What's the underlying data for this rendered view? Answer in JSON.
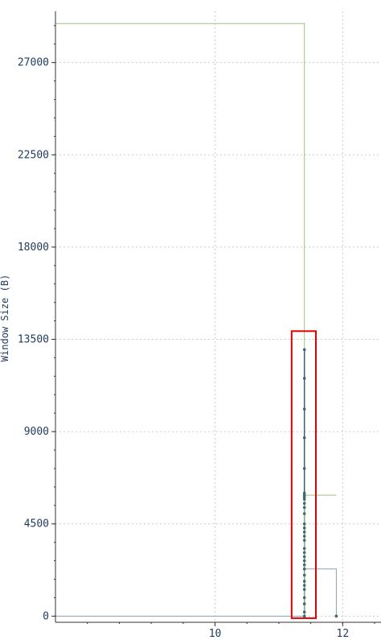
{
  "chart_data": {
    "type": "line",
    "title": "",
    "xlabel": "",
    "ylabel": "Window Size (B)",
    "xlim": [
      7.5,
      12.6
    ],
    "ylim": [
      -300,
      29500
    ],
    "x_ticks": [
      10,
      12
    ],
    "y_ticks": [
      0,
      4500,
      9000,
      13500,
      18000,
      22500,
      27000
    ],
    "grid": true,
    "colors": {
      "receive_window": "#9bc47a",
      "bytes_in_flight": "#3d5d78",
      "bytes_in_flight_points": "#3d6b6b",
      "secondary_step": "#8aa0be",
      "axis": "#333333",
      "grid": "#cccccc",
      "highlight": "#e00000"
    },
    "series": [
      {
        "type": "step",
        "color_key": "receive_window",
        "x": [
          7.5,
          11.4,
          11.4,
          11.9
        ],
        "y": [
          28900,
          28900,
          5900,
          5900
        ]
      },
      {
        "type": "step",
        "color_key": "secondary_step",
        "x": [
          7.5,
          11.4,
          11.4,
          11.9,
          11.9
        ],
        "y": [
          0,
          0,
          2300,
          2300,
          0
        ]
      },
      {
        "type": "line+points",
        "color_key": "bytes_in_flight_points",
        "x": [
          11.4,
          11.4,
          11.4,
          11.4,
          11.4,
          11.4,
          11.4,
          11.4,
          11.4,
          11.4,
          11.4,
          11.4,
          11.4,
          11.4,
          11.4,
          11.4,
          11.4,
          11.4,
          11.4,
          11.4,
          11.4,
          11.4,
          11.4,
          11.4,
          11.4,
          11.4,
          11.4,
          11.4,
          11.4,
          11.4,
          11.4,
          11.9
        ],
        "y": [
          0,
          200,
          600,
          900,
          1300,
          1500,
          1700,
          2000,
          2300,
          2500,
          2700,
          2900,
          3100,
          3300,
          3700,
          3900,
          4100,
          4300,
          4500,
          5000,
          5300,
          5500,
          5700,
          5800,
          5900,
          6000,
          7200,
          8700,
          10100,
          11600,
          13000,
          0
        ]
      }
    ],
    "annotation": {
      "type": "highlight-box",
      "color_key": "highlight",
      "x_range": [
        11.2,
        11.58
      ],
      "y_range": [
        -100,
        13900
      ]
    }
  }
}
